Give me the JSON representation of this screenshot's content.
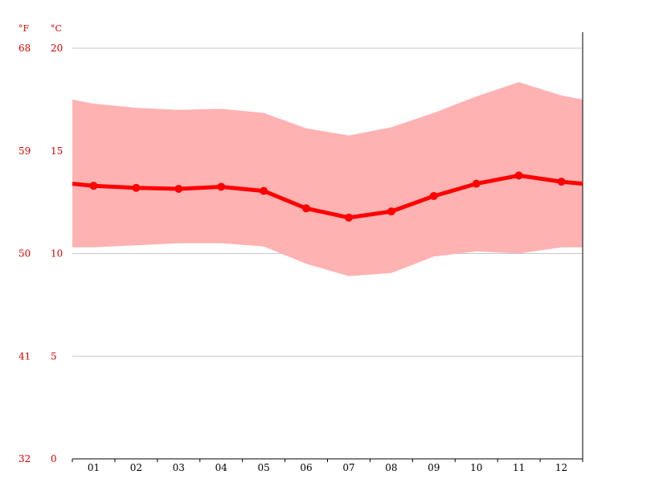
{
  "chart_data": {
    "type": "line",
    "units": {
      "fahrenheit": "°F",
      "celsius": "°C"
    },
    "categories": [
      "01",
      "02",
      "03",
      "04",
      "05",
      "06",
      "07",
      "08",
      "09",
      "10",
      "11",
      "12"
    ],
    "y_ticks_celsius": [
      "0",
      "5",
      "10",
      "15",
      "20"
    ],
    "y_ticks_fahrenheit": [
      "32",
      "41",
      "50",
      "59",
      "68"
    ],
    "ylim": [
      0,
      20
    ],
    "grid": true,
    "series": [
      {
        "role": "mean",
        "values": [
          13.3,
          13.2,
          13.15,
          13.25,
          13.05,
          12.2,
          11.75,
          12.05,
          12.8,
          13.4,
          13.8,
          13.5
        ]
      },
      {
        "role": "max",
        "values": [
          17.3,
          17.1,
          17.0,
          17.05,
          16.85,
          16.1,
          15.75,
          16.15,
          16.85,
          17.65,
          18.35,
          17.7
        ]
      },
      {
        "role": "min",
        "values": [
          10.3,
          10.4,
          10.5,
          10.5,
          10.35,
          9.5,
          8.9,
          9.05,
          9.85,
          10.1,
          10.0,
          10.3
        ]
      }
    ],
    "edge_values": {
      "mean": [
        13.4,
        13.4
      ],
      "max": [
        17.5,
        17.5
      ],
      "min": [
        10.3,
        10.3
      ]
    },
    "colors": {
      "line": "#ff0000",
      "band": "#ffb2b2",
      "grid": "#c8c8c8",
      "tick_label": "#dd0000",
      "axis": "#000000"
    }
  }
}
